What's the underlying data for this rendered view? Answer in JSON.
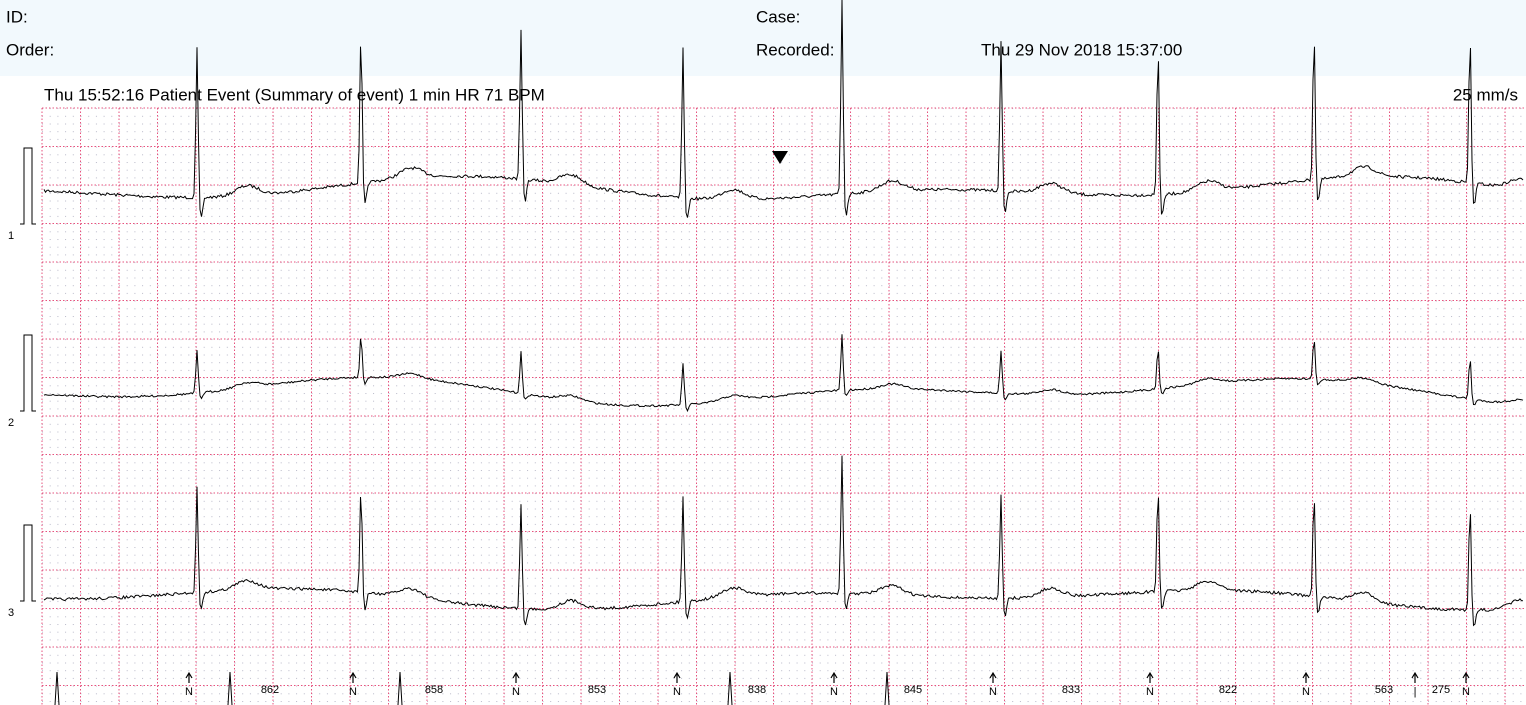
{
  "header": {
    "id_label": "ID:",
    "order_label": "Order:",
    "case_label": "Case:",
    "recorded_label": "Recorded:",
    "recorded_value": "Thu 29 Nov 2018 15:37:00"
  },
  "strip": {
    "title": "Thu 15:52:16 Patient Event  (Summary of event) 1 min HR 71 BPM",
    "speed": "25 mm/s",
    "leads": [
      "1",
      "2",
      "3"
    ],
    "beats": [
      "N",
      "N",
      "N",
      "N",
      "N",
      "N",
      "N",
      "N",
      "|",
      "N"
    ],
    "rr_intervals": [
      862,
      858,
      853,
      838,
      845,
      833,
      822,
      563,
      275
    ]
  }
}
